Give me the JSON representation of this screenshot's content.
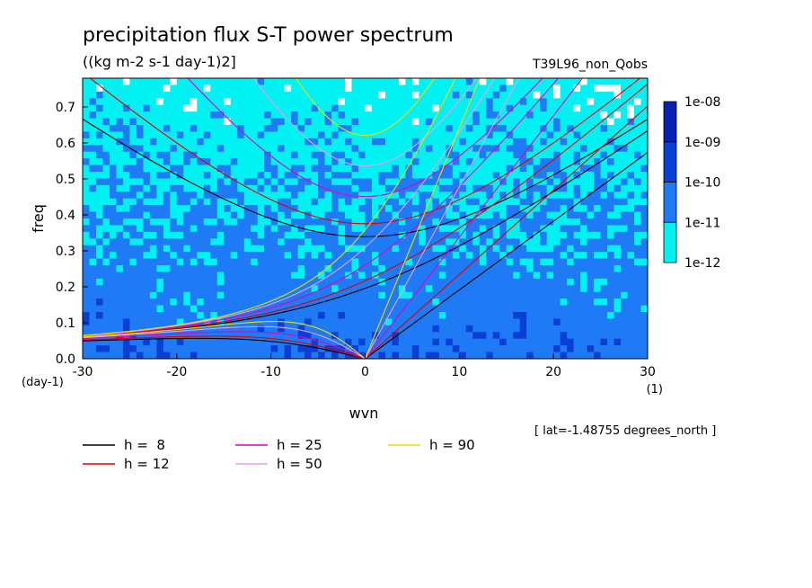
{
  "chart_data": {
    "type": "heatmap",
    "title": "precipitation flux S-T power spectrum",
    "subtitle": "((kg m-2 s-1 day-1)2]",
    "run_label": "T39L96_non_Qobs",
    "xlabel": "wvn",
    "ylabel": "freq",
    "x_unit": "(1)",
    "y_unit": "(day-1)",
    "xlim": [
      -30,
      30
    ],
    "ylim": [
      0,
      0.78
    ],
    "x_ticks": [
      -30,
      -20,
      -10,
      0,
      10,
      20,
      30
    ],
    "x_tick_labels": [
      "-30",
      "-20",
      "-10",
      "0",
      "10",
      "20",
      "30"
    ],
    "y_ticks": [
      0.0,
      0.1,
      0.2,
      0.3,
      0.4,
      0.5,
      0.6,
      0.7
    ],
    "y_tick_labels": [
      "0.0",
      "0.1",
      "0.2",
      "0.3",
      "0.4",
      "0.5",
      "0.6",
      "0.7"
    ],
    "colorbar": {
      "levels": [
        "1e-12",
        "1e-11",
        "1e-10",
        "1e-09",
        "1e-08"
      ],
      "colors": [
        "#00f2f2",
        "#1f7af5",
        "#0a3fd6",
        "#0a1fb4",
        "#5a1fb8"
      ]
    },
    "field_description": "log10 power: ~1e-11..1e-10 (blue) over most of domain at low freq, ~1e-12..1e-11 (cyan) at higher freq, small white gaps below 1e-12",
    "curves": {
      "h_values": [
        8,
        12,
        25,
        50,
        90
      ],
      "colors": [
        "#000000",
        "#e00000",
        "#e000c0",
        "#e8a0e8",
        "#e8e000"
      ],
      "families": [
        "kelvin",
        "inertia_gravity_n1",
        "mixed_rossby_gravity",
        "rossby_n1"
      ]
    },
    "legend": [
      {
        "label": "h =  8",
        "color": "#000000"
      },
      {
        "label": "h = 12",
        "color": "#e00000"
      },
      {
        "label": "h = 25",
        "color": "#e000c0"
      },
      {
        "label": "h = 50",
        "color": "#e8a0e8"
      },
      {
        "label": "h = 90",
        "color": "#e8e000"
      }
    ],
    "annotation": "[ lat=-1.48755 degrees_north ]",
    "grid": false
  }
}
